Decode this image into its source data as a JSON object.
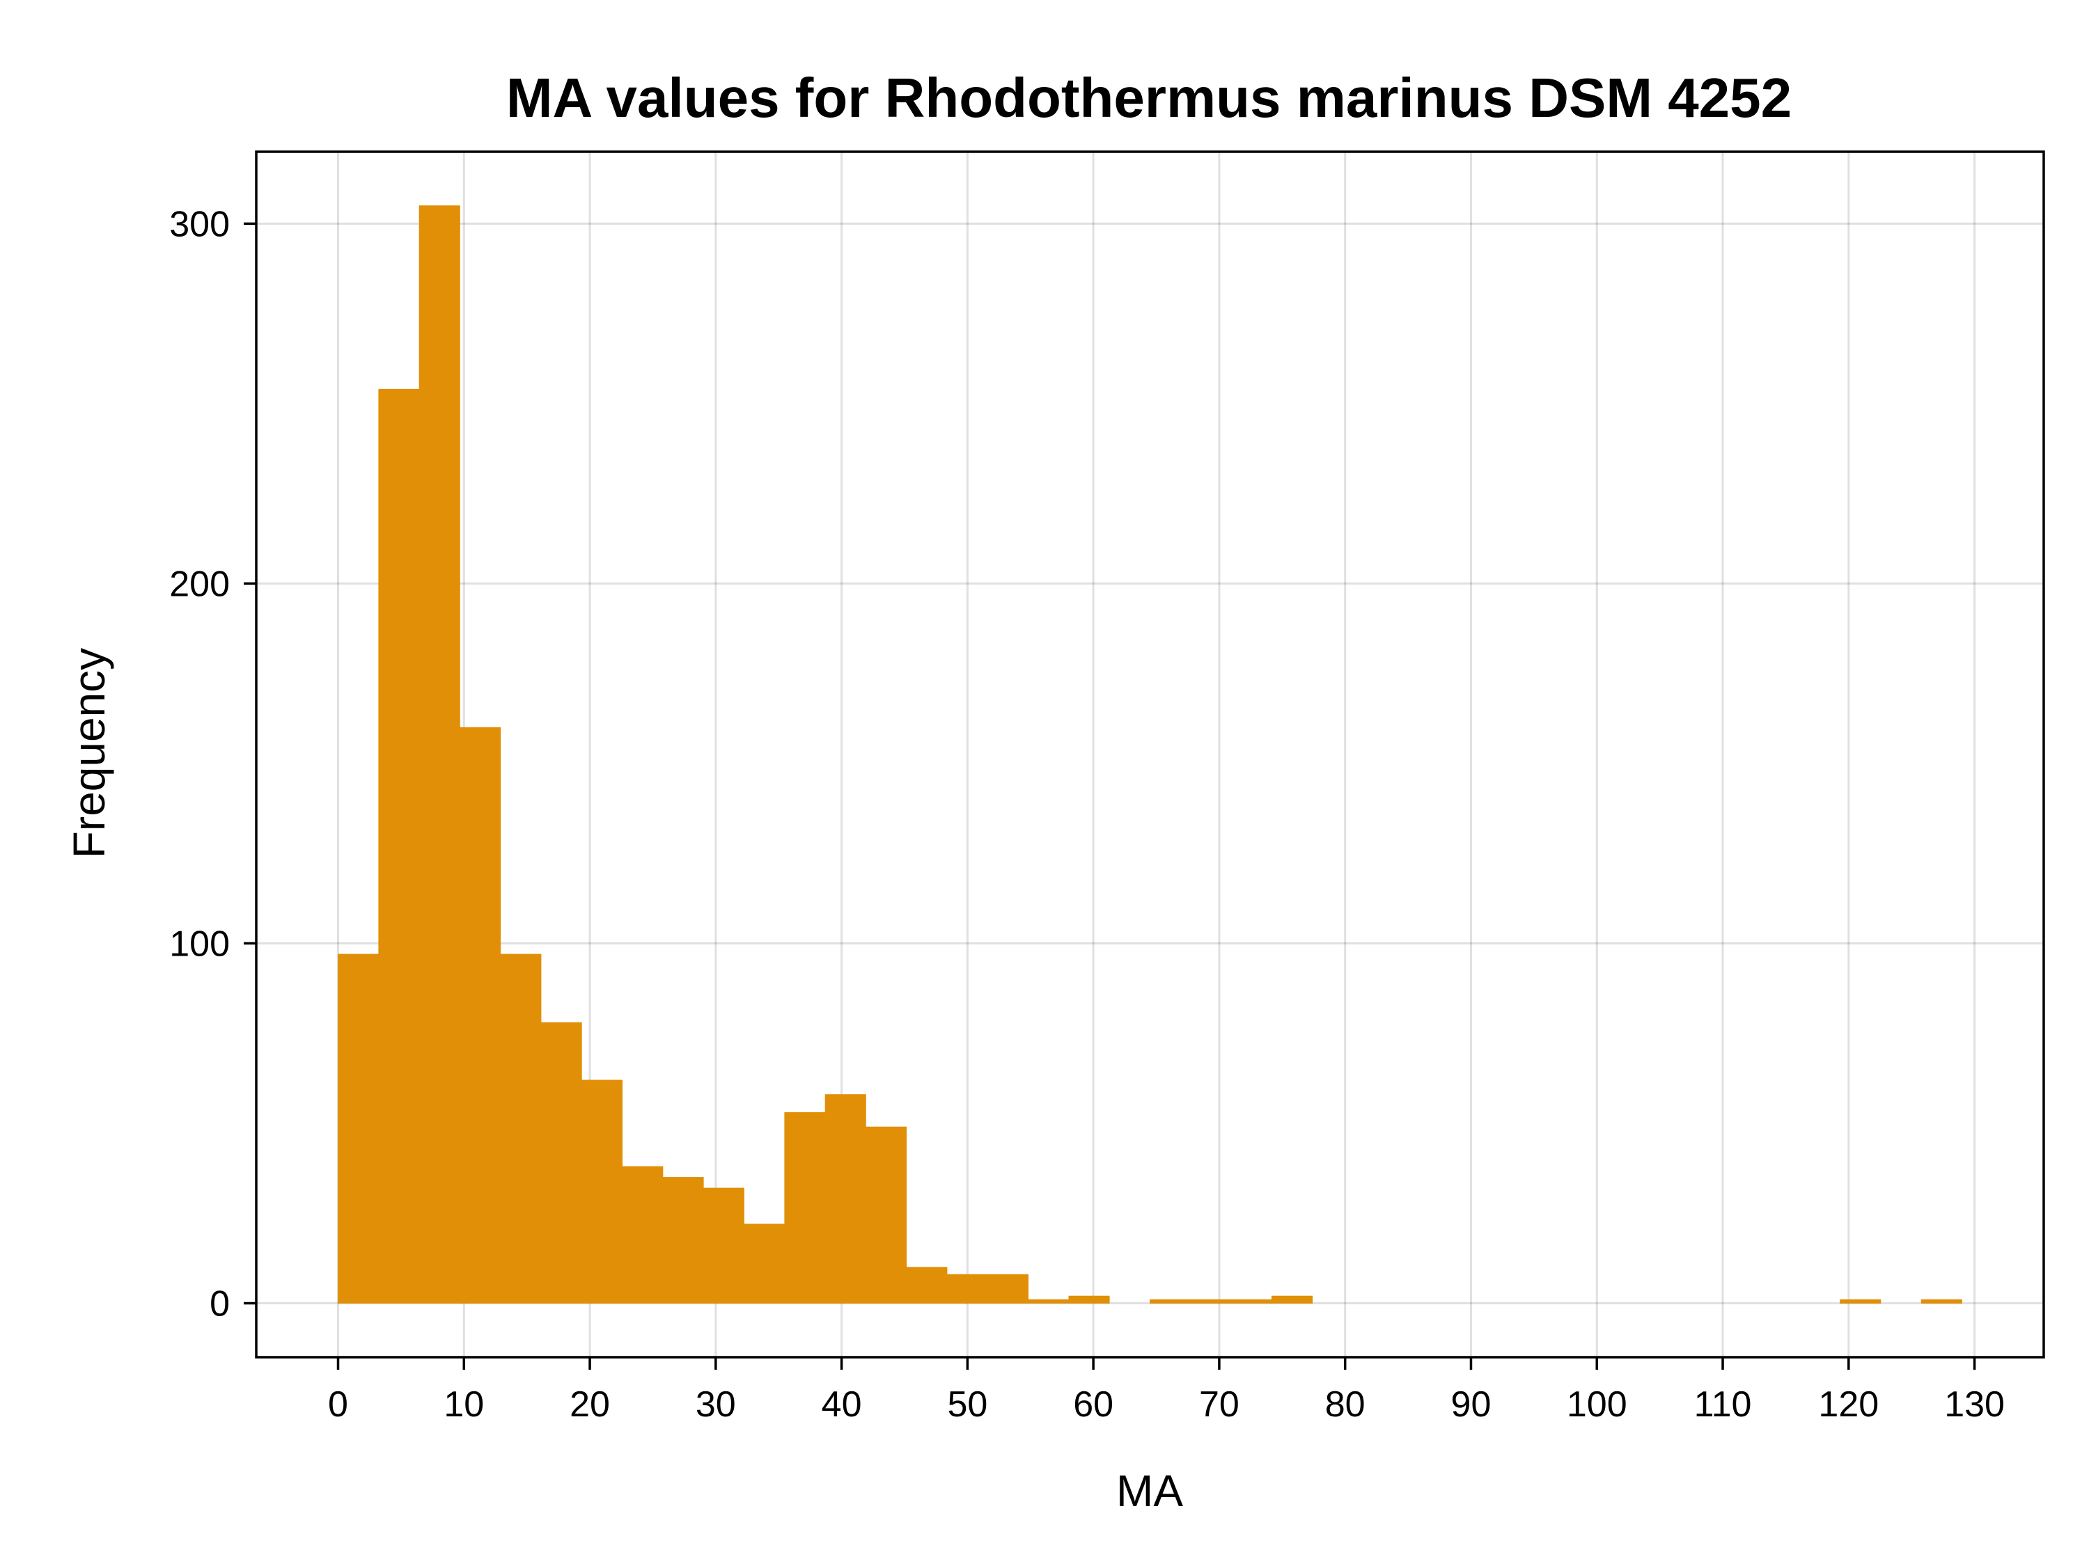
{
  "chart_data": {
    "type": "bar",
    "title": "MA values for Rhodothermus marinus DSM 4252",
    "xlabel": "MA",
    "ylabel": "Frequency",
    "bar_color": "#E08F06",
    "grid": true,
    "xlim": [
      -6.5,
      135.5
    ],
    "ylim": [
      -15,
      320
    ],
    "xticks": [
      0,
      10,
      20,
      30,
      40,
      50,
      60,
      70,
      80,
      90,
      100,
      110,
      120,
      130
    ],
    "yticks": [
      0,
      100,
      200,
      300
    ],
    "bin_width": 3.225,
    "bins": [
      {
        "x0": 0.0,
        "count": 97
      },
      {
        "x0": 3.225,
        "count": 254
      },
      {
        "x0": 6.45,
        "count": 305
      },
      {
        "x0": 9.675,
        "count": 160
      },
      {
        "x0": 12.9,
        "count": 97
      },
      {
        "x0": 16.125,
        "count": 78
      },
      {
        "x0": 19.35,
        "count": 62
      },
      {
        "x0": 22.575,
        "count": 38
      },
      {
        "x0": 25.8,
        "count": 35
      },
      {
        "x0": 29.025,
        "count": 32
      },
      {
        "x0": 32.25,
        "count": 22
      },
      {
        "x0": 35.475,
        "count": 53
      },
      {
        "x0": 38.7,
        "count": 58
      },
      {
        "x0": 41.925,
        "count": 49
      },
      {
        "x0": 45.15,
        "count": 10
      },
      {
        "x0": 48.375,
        "count": 8
      },
      {
        "x0": 51.6,
        "count": 8
      },
      {
        "x0": 54.825,
        "count": 1
      },
      {
        "x0": 58.05,
        "count": 2
      },
      {
        "x0": 61.275,
        "count": 0
      },
      {
        "x0": 64.5,
        "count": 1
      },
      {
        "x0": 67.725,
        "count": 1
      },
      {
        "x0": 70.95,
        "count": 1
      },
      {
        "x0": 74.175,
        "count": 2
      },
      {
        "x0": 119.325,
        "count": 1
      },
      {
        "x0": 125.775,
        "count": 1
      }
    ]
  }
}
